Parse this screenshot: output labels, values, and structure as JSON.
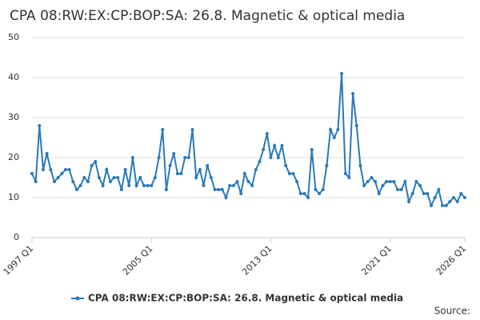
{
  "chart_data": {
    "type": "line",
    "title": "CPA 08:RW:EX:CP:BOP:SA: 26.8. Magnetic & optical media",
    "categories": [
      "1997 Q1",
      null,
      null,
      null,
      null,
      null,
      null,
      null,
      null,
      null,
      null,
      null,
      null,
      null,
      null,
      null,
      null,
      null,
      null,
      null,
      null,
      null,
      null,
      null,
      null,
      null,
      null,
      null,
      null,
      null,
      null,
      null,
      "2005 Q1",
      null,
      null,
      null,
      null,
      null,
      null,
      null,
      null,
      null,
      null,
      null,
      null,
      null,
      null,
      null,
      null,
      null,
      null,
      null,
      null,
      null,
      null,
      null,
      null,
      null,
      null,
      null,
      null,
      null,
      null,
      null,
      "2013 Q1",
      null,
      null,
      null,
      null,
      null,
      null,
      null,
      null,
      null,
      null,
      null,
      null,
      null,
      null,
      null,
      null,
      null,
      null,
      null,
      null,
      null,
      null,
      null,
      null,
      null,
      null,
      null,
      null,
      null,
      null,
      null,
      "2021 Q1",
      null,
      null,
      null,
      null,
      null,
      null,
      null,
      null,
      null,
      null,
      null,
      null,
      null,
      null,
      null,
      null,
      null,
      null,
      null,
      "2026 Q1"
    ],
    "series": [
      {
        "name": "CPA 08:RW:EX:CP:BOP:SA: 26.8. Magnetic & optical media",
        "color": "#2a7ab9",
        "values": [
          16,
          14,
          28,
          17,
          21,
          17,
          14,
          15,
          16,
          17,
          17,
          14,
          12,
          13,
          15,
          14,
          18,
          19,
          15,
          13,
          17,
          14,
          15,
          15,
          12,
          17,
          13,
          20,
          13,
          15,
          13,
          13,
          13,
          15,
          20,
          27,
          12,
          18,
          21,
          16,
          16,
          20,
          20,
          27,
          15,
          17,
          13,
          18,
          15,
          12,
          12,
          12,
          10,
          13,
          13,
          14,
          11,
          16,
          14,
          13,
          17,
          19,
          22,
          26,
          20,
          23,
          20,
          23,
          18,
          16,
          16,
          14,
          11,
          11,
          10,
          22,
          12,
          11,
          12,
          18,
          27,
          25,
          27,
          41,
          16,
          15,
          36,
          28,
          18,
          13,
          14,
          15,
          14,
          11,
          13,
          14,
          14,
          14,
          12,
          12,
          14,
          9,
          11,
          14,
          13,
          11,
          11,
          8,
          10,
          12,
          8,
          8,
          9,
          10,
          9,
          11,
          10
        ]
      }
    ],
    "ylim": [
      0,
      50
    ],
    "yticks": [
      0,
      10,
      20,
      30,
      40,
      50
    ],
    "grid": true,
    "legend": "bottom",
    "source": "Source:"
  }
}
